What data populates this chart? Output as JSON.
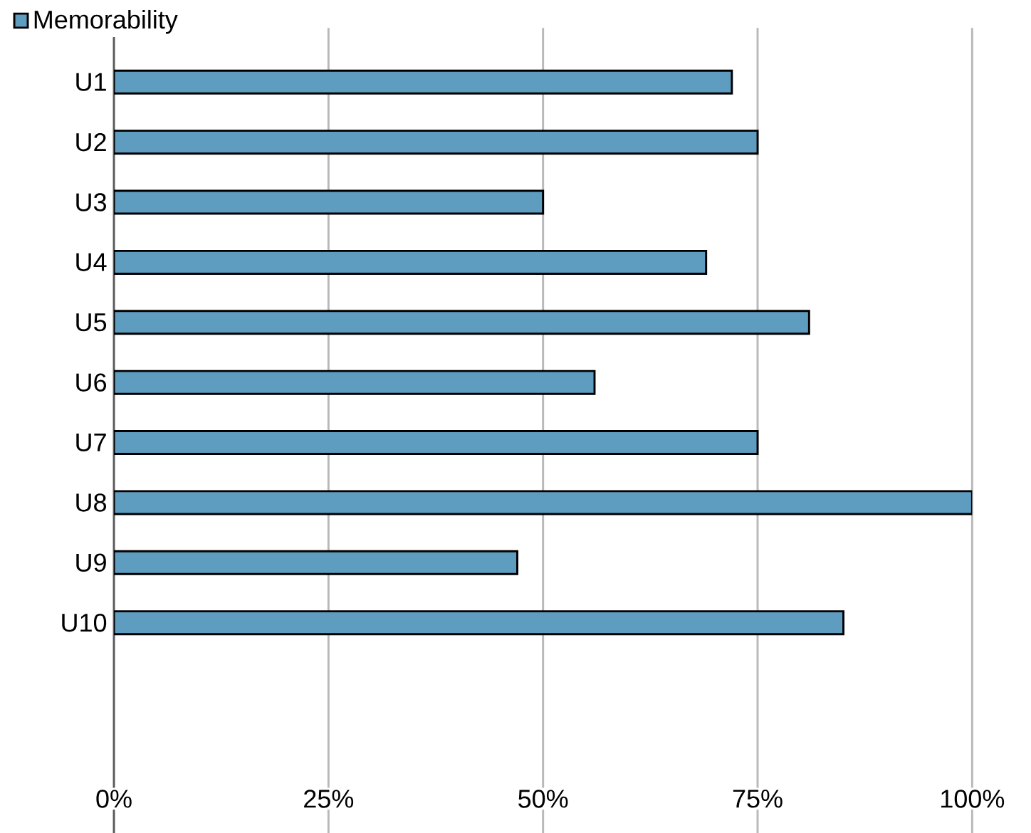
{
  "chart_data": {
    "type": "bar",
    "orientation": "horizontal",
    "categories": [
      "U1",
      "U2",
      "U3",
      "U4",
      "U5",
      "U6",
      "U7",
      "U8",
      "U9",
      "U10",
      null,
      null,
      null
    ],
    "series": [
      {
        "name": "Memorability",
        "color": "#5f9dc0",
        "values": [
          72,
          75,
          50,
          69,
          81,
          56,
          75,
          100,
          47,
          85,
          null,
          null,
          null
        ]
      }
    ],
    "xlim": [
      0,
      100
    ],
    "xticks": [
      {
        "value": 0,
        "label": "0%"
      },
      {
        "value": 25,
        "label": "25%"
      },
      {
        "value": 50,
        "label": "50%"
      },
      {
        "value": 75,
        "label": "75%"
      },
      {
        "value": 100,
        "label": "100%"
      }
    ],
    "grid": "x",
    "legend": "top left"
  }
}
